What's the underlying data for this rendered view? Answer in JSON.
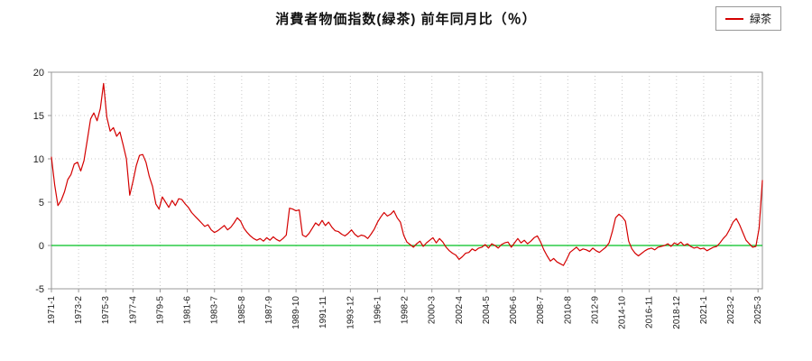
{
  "title": "消費者物価指数(緑茶) 前年同月比（％）",
  "legend": {
    "label": "緑茶"
  },
  "colors": {
    "series": "#d40000",
    "zero_line": "#00c020",
    "grid": "#c8c8c8",
    "plot_border": "#999999",
    "tick_text": "#222222",
    "background": "#ffffff"
  },
  "chart_data": {
    "type": "line",
    "title": "消費者物価指数(緑茶) 前年同月比（％）",
    "series_name": "緑茶",
    "ylabel": "",
    "xlabel": "",
    "ylim": [
      -5,
      20
    ],
    "y_ticks": [
      -5,
      0,
      5,
      10,
      15,
      20
    ],
    "grid": true,
    "legend_position": "top-right",
    "x_start": "1971-1",
    "x_interval_months": 3,
    "x_tick_interval_months": 25,
    "x_tick_labels": [
      "1971-1",
      "1973-2",
      "1975-3",
      "1977-4",
      "1979-5",
      "1981-6",
      "1983-7",
      "1985-8",
      "1987-9",
      "1989-10",
      "1991-11",
      "1993-12",
      "1996-1",
      "1998-2",
      "2000-3",
      "2002-4",
      "2004-5",
      "2006-6",
      "2008-7",
      "2010-8",
      "2012-9",
      "2014-10",
      "2016-11",
      "2018-12",
      "2021-1",
      "2023-2",
      "2025-3"
    ],
    "values": [
      10.2,
      7.0,
      4.6,
      5.2,
      6.2,
      7.6,
      8.2,
      9.4,
      9.6,
      8.6,
      9.8,
      12.2,
      14.6,
      15.3,
      14.4,
      15.8,
      18.7,
      14.8,
      13.2,
      13.6,
      12.6,
      13.1,
      11.6,
      10.0,
      5.8,
      7.4,
      9.2,
      10.4,
      10.5,
      9.6,
      8.0,
      6.8,
      4.8,
      4.2,
      5.6,
      5.0,
      4.4,
      5.2,
      4.6,
      5.4,
      5.3,
      4.8,
      4.4,
      3.8,
      3.4,
      3.0,
      2.6,
      2.2,
      2.4,
      1.8,
      1.5,
      1.7,
      2.0,
      2.3,
      1.8,
      2.1,
      2.6,
      3.2,
      2.8,
      2.0,
      1.5,
      1.1,
      0.8,
      0.6,
      0.8,
      0.5,
      0.9,
      0.6,
      1.0,
      0.7,
      0.5,
      0.8,
      1.2,
      4.3,
      4.2,
      4.0,
      4.1,
      1.2,
      1.0,
      1.4,
      2.0,
      2.6,
      2.3,
      2.9,
      2.3,
      2.7,
      2.1,
      1.7,
      1.6,
      1.3,
      1.1,
      1.4,
      1.8,
      1.3,
      1.0,
      1.2,
      1.1,
      0.8,
      1.3,
      1.9,
      2.7,
      3.3,
      3.8,
      3.4,
      3.6,
      4.0,
      3.2,
      2.7,
      1.2,
      0.4,
      0.1,
      -0.2,
      0.2,
      0.5,
      -0.1,
      0.3,
      0.6,
      0.9,
      0.3,
      0.8,
      0.4,
      -0.2,
      -0.6,
      -0.9,
      -1.1,
      -1.6,
      -1.3,
      -0.9,
      -0.8,
      -0.4,
      -0.6,
      -0.3,
      -0.2,
      0.1,
      -0.3,
      0.2,
      0.0,
      -0.3,
      0.1,
      0.3,
      0.4,
      -0.2,
      0.3,
      0.8,
      0.3,
      0.6,
      0.2,
      0.5,
      0.9,
      1.1,
      0.4,
      -0.5,
      -1.2,
      -1.8,
      -1.5,
      -1.9,
      -2.1,
      -2.3,
      -1.6,
      -0.8,
      -0.5,
      -0.2,
      -0.6,
      -0.4,
      -0.5,
      -0.7,
      -0.3,
      -0.6,
      -0.8,
      -0.5,
      -0.2,
      0.3,
      1.6,
      3.2,
      3.6,
      3.3,
      2.8,
      0.5,
      -0.4,
      -0.9,
      -1.2,
      -0.9,
      -0.6,
      -0.4,
      -0.3,
      -0.5,
      -0.2,
      -0.1,
      0.0,
      0.2,
      -0.1,
      0.3,
      0.1,
      0.4,
      0.0,
      0.2,
      -0.1,
      -0.3,
      -0.2,
      -0.4,
      -0.3,
      -0.6,
      -0.4,
      -0.2,
      -0.1,
      0.3,
      0.8,
      1.2,
      1.9,
      2.7,
      3.1,
      2.4,
      1.5,
      0.6,
      0.2,
      -0.2,
      -0.1,
      2.0,
      7.5
    ]
  }
}
